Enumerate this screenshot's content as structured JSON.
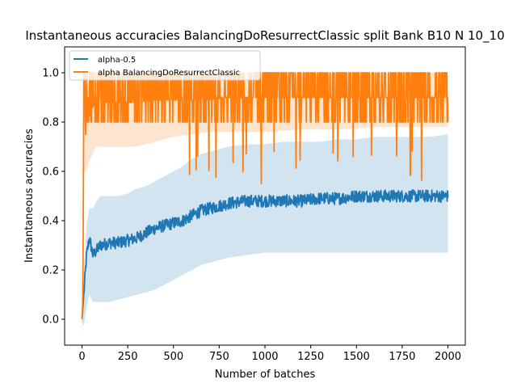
{
  "chart_data": {
    "type": "line",
    "title": "Instantaneous accuracies BalancingDoResurrectClassic split Bank B10 N 10_10",
    "xlabel": "Number of batches",
    "ylabel": "Instantaneous accuracies",
    "xlim": [
      -95,
      2095
    ],
    "ylim": [
      -0.105,
      1.105
    ],
    "x_ticks": [
      0,
      250,
      500,
      750,
      1000,
      1250,
      1500,
      1750,
      2000
    ],
    "y_ticks": [
      0.0,
      0.2,
      0.4,
      0.6,
      0.8,
      1.0
    ],
    "grid": false,
    "legend_position": "upper-left",
    "series": [
      {
        "name": "alpha-0.5",
        "color": "#1f77b4",
        "band_color": "#1f77b4",
        "x": [
          0,
          10,
          25,
          40,
          60,
          80,
          100,
          150,
          200,
          250,
          300,
          350,
          400,
          450,
          500,
          550,
          600,
          650,
          700,
          750,
          800,
          900,
          1000,
          1100,
          1200,
          1300,
          1400,
          1500,
          1600,
          1700,
          1800,
          1900,
          2000
        ],
        "mean": [
          0.0,
          0.1,
          0.26,
          0.33,
          0.26,
          0.28,
          0.3,
          0.31,
          0.31,
          0.32,
          0.33,
          0.35,
          0.37,
          0.38,
          0.39,
          0.4,
          0.42,
          0.44,
          0.45,
          0.46,
          0.47,
          0.48,
          0.48,
          0.48,
          0.48,
          0.49,
          0.49,
          0.5,
          0.5,
          0.5,
          0.5,
          0.5,
          0.5
        ],
        "upper": [
          0.0,
          0.2,
          0.38,
          0.45,
          0.45,
          0.48,
          0.5,
          0.5,
          0.5,
          0.51,
          0.53,
          0.54,
          0.56,
          0.58,
          0.6,
          0.62,
          0.65,
          0.67,
          0.68,
          0.69,
          0.7,
          0.71,
          0.71,
          0.72,
          0.72,
          0.72,
          0.73,
          0.73,
          0.74,
          0.74,
          0.74,
          0.74,
          0.75
        ],
        "lower": [
          0.0,
          -0.03,
          0.05,
          0.1,
          0.07,
          0.07,
          0.07,
          0.07,
          0.08,
          0.09,
          0.1,
          0.11,
          0.12,
          0.14,
          0.16,
          0.18,
          0.2,
          0.22,
          0.23,
          0.24,
          0.25,
          0.26,
          0.27,
          0.27,
          0.27,
          0.27,
          0.27,
          0.27,
          0.27,
          0.27,
          0.27,
          0.27,
          0.27
        ]
      },
      {
        "name": "alpha BalancingDoResurrectClassic",
        "color": "#ff7f0e",
        "band_color": "#ff7f0e",
        "x": [
          0,
          5,
          10,
          20,
          30,
          50,
          75,
          100,
          150,
          200,
          250,
          300,
          400,
          500,
          600,
          700,
          800,
          1000,
          1200,
          1400,
          1600,
          1800,
          2000
        ],
        "mean": [
          0.0,
          0.1,
          0.95,
          0.75,
          0.8,
          0.85,
          0.88,
          0.88,
          0.88,
          0.88,
          0.88,
          0.88,
          0.89,
          0.89,
          0.89,
          0.89,
          0.9,
          0.9,
          0.9,
          0.9,
          0.9,
          0.9,
          0.9
        ],
        "upper": [
          0.0,
          0.15,
          1.0,
          0.9,
          0.95,
          1.0,
          1.0,
          1.0,
          1.0,
          1.0,
          1.0,
          1.0,
          1.0,
          1.0,
          1.0,
          1.0,
          1.0,
          1.0,
          1.0,
          1.0,
          1.0,
          1.0,
          1.0
        ],
        "lower": [
          -0.05,
          -0.05,
          0.6,
          0.6,
          0.62,
          0.66,
          0.7,
          0.7,
          0.7,
          0.7,
          0.7,
          0.7,
          0.72,
          0.74,
          0.75,
          0.76,
          0.76,
          0.76,
          0.77,
          0.77,
          0.78,
          0.78,
          0.78
        ]
      }
    ]
  }
}
